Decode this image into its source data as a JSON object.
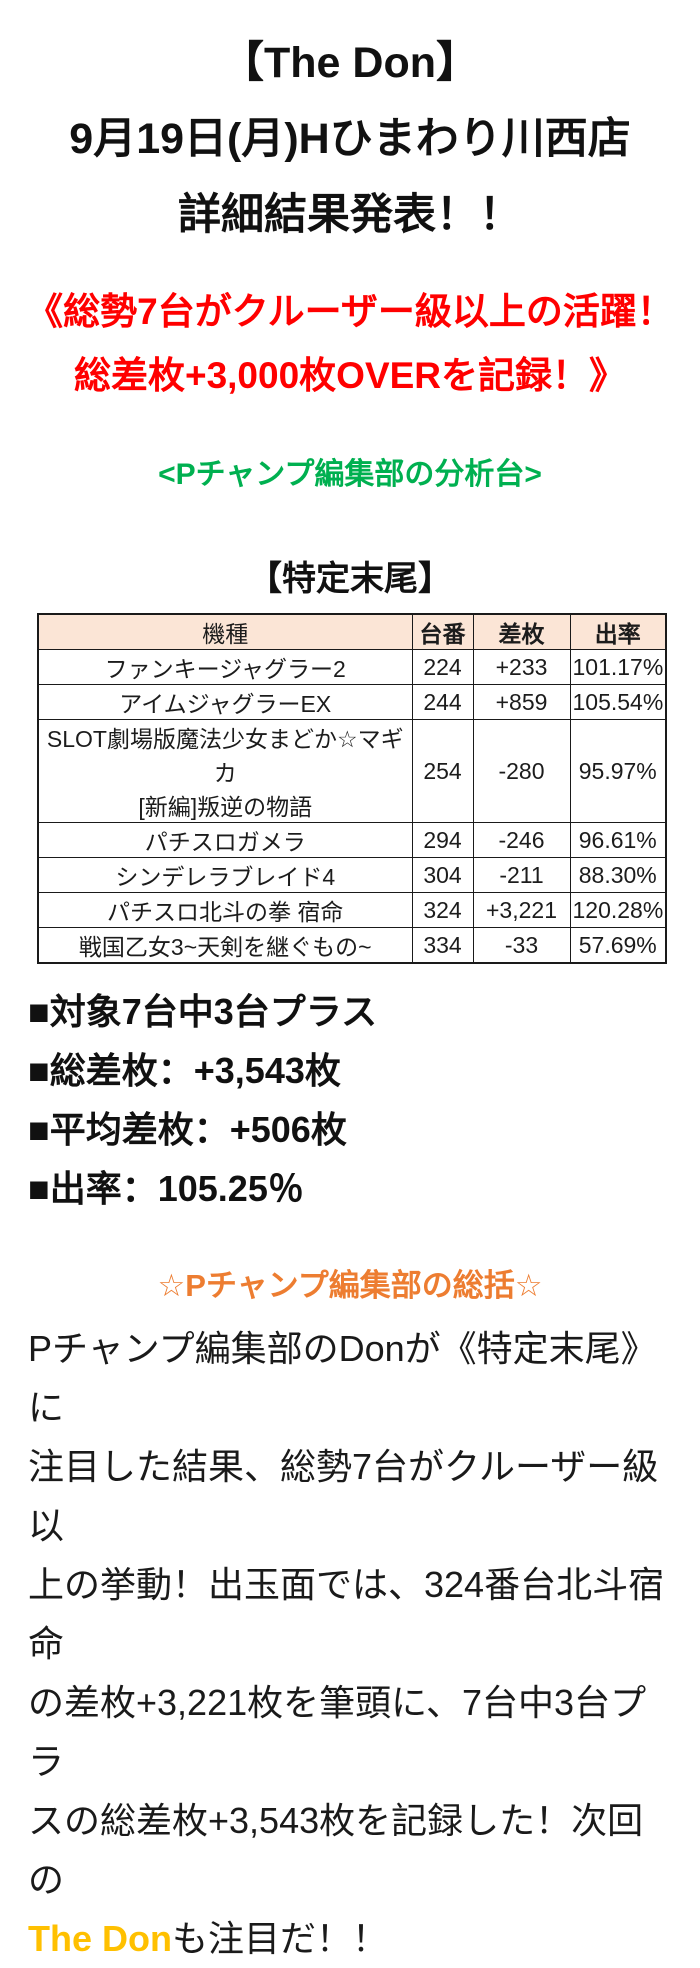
{
  "colors": {
    "headline_red": "#ff0000",
    "analysis_green": "#00b050",
    "recap_orange": "#ed7d31",
    "brand_yellow": "#ffc000",
    "table_header_bg": "#fbe5d6",
    "table_border": "#1a1a1a"
  },
  "header": {
    "title_lines": [
      "【The Don】",
      "9月19日(月)Hひまわり川西店",
      "詳細結果発表！！"
    ]
  },
  "headline": {
    "lines": [
      "《総勢7台がクルーザー級以上の活躍！",
      "総差枚+3,000枚OVERを記録！》"
    ]
  },
  "analysis": {
    "label": "<Pチャンプ編集部の分析台>"
  },
  "section": {
    "title": "【特定末尾】"
  },
  "results_table": {
    "headers": [
      "機種",
      "台番",
      "差枚",
      "出率"
    ],
    "rows": [
      {
        "machine": "ファンキージャグラー2",
        "unit": "224",
        "diff": "+233",
        "payout": "101.17%"
      },
      {
        "machine": "アイムジャグラーEX",
        "unit": "244",
        "diff": "+859",
        "payout": "105.54%"
      },
      {
        "machine": "SLOT劇場版魔法少女まどか☆マギカ\n[新編]叛逆の物語",
        "unit": "254",
        "diff": "-280",
        "payout": "95.97%"
      },
      {
        "machine": "パチスロガメラ",
        "unit": "294",
        "diff": "-246",
        "payout": "96.61%"
      },
      {
        "machine": "シンデレラブレイド4",
        "unit": "304",
        "diff": "-211",
        "payout": "88.30%"
      },
      {
        "machine": "パチスロ北斗の拳 宿命",
        "unit": "324",
        "diff": "+3,221",
        "payout": "120.28%"
      },
      {
        "machine": "戦国乙女3~天剣を継ぐもの~",
        "unit": "334",
        "diff": "-33",
        "payout": "57.69%"
      }
    ]
  },
  "summary": {
    "items": [
      "■対象7台中3台プラス",
      "■総差枚：+3,543枚",
      "■平均差枚：+506枚",
      "■出率：105.25％"
    ]
  },
  "recap": {
    "heading": "☆Pチャンプ編集部の総括☆",
    "body_lines": [
      "Pチャンプ編集部のDonが《特定末尾》に",
      "注目した結果、総勢7台がクルーザー級以",
      "上の挙動！出玉面では、324番台北斗宿命",
      "の差枚+3,221枚を筆頭に、7台中3台プラ",
      "スの総差枚+3,543枚を記録した！次回の"
    ],
    "highlight": "The Don",
    "after_highlight": "も注目だ！！"
  }
}
